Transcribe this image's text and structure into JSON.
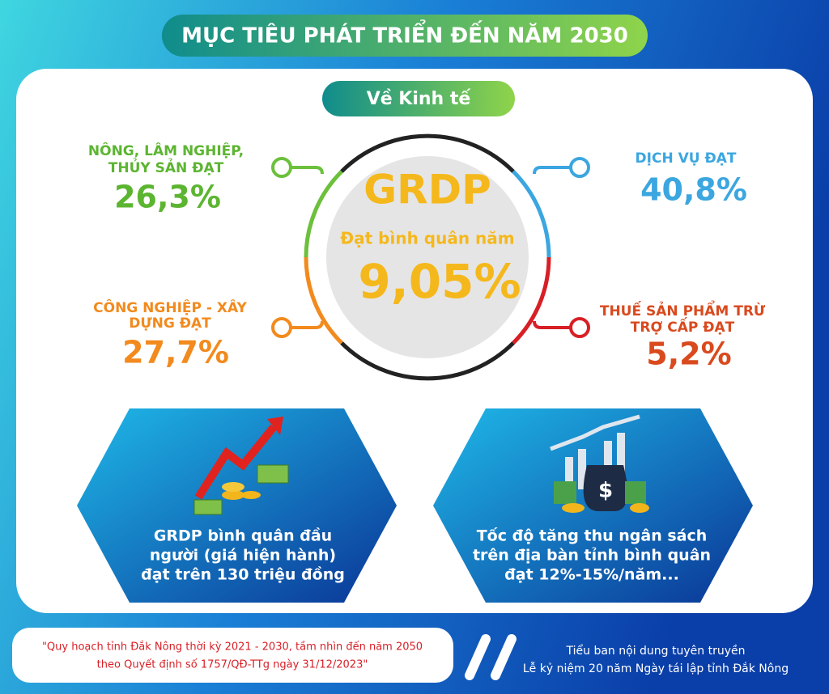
{
  "header": {
    "title": "MỤC TIÊU PHÁT TRIỂN ĐẾN NĂM 2030"
  },
  "section": {
    "title": "Về Kinh tế"
  },
  "center": {
    "title": "GRDP",
    "subtitle": "Đạt bình quân năm",
    "value": "9,05%"
  },
  "items": [
    {
      "label": [
        "NÔNG, LÂM NGHIỆP,",
        "THỦY SẢN ĐẠT"
      ],
      "value": "26,3%"
    },
    {
      "label": [
        "DỊCH VỤ ĐẠT"
      ],
      "value": "40,8%"
    },
    {
      "label": [
        "CÔNG NGHIỆP - XÂY",
        "DỰNG ĐẠT"
      ],
      "value": "27,7%"
    },
    {
      "label": [
        "THUẾ SẢN PHẨM TRỪ",
        "TRỢ CẤP ĐẠT"
      ],
      "value": "5,2%"
    }
  ],
  "cards": [
    {
      "lines": [
        "GRDP bình quân đầu",
        "người (giá hiện hành)",
        "đạt trên 130 triệu đồng"
      ]
    },
    {
      "lines": [
        "Tốc độ tăng thu ngân sách",
        "trên địa bàn tỉnh bình quân",
        "đạt 12%-15%/năm..."
      ]
    }
  ],
  "footer": {
    "quote": [
      "\"Quy hoạch tỉnh Đắk Nông thời kỳ 2021 - 2030, tầm nhìn đến năm 2050",
      "theo Quyết định số 1757/QĐ-TTg ngày 31/12/2023\""
    ],
    "credit": [
      "Tiểu ban nội dung tuyên truyền",
      "Lễ kỷ niệm 20 năm Ngày tái lập tỉnh Đắk Nông"
    ]
  }
}
